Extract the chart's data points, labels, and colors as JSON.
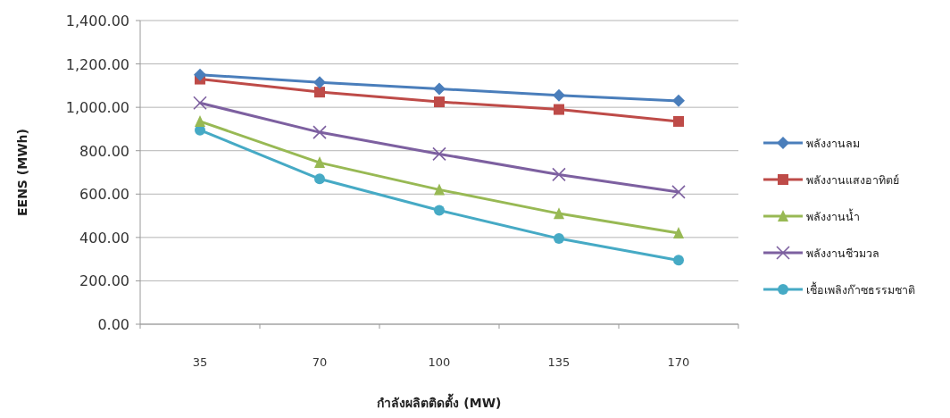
{
  "chart_data": {
    "type": "line",
    "xlabel": "กำลังผลิตติดตั้ง (MW)",
    "ylabel": "EENS (MWh)",
    "categories": [
      "35",
      "70",
      "100",
      "135",
      "170"
    ],
    "series": [
      {
        "name": "พลังงานลม",
        "color": "#4a7ebb",
        "marker": "diamond",
        "values": [
          1150,
          1115,
          1085,
          1055,
          1030
        ]
      },
      {
        "name": "พลังงานแสงอาทิตย์",
        "color": "#be4b48",
        "marker": "square",
        "values": [
          1130,
          1070,
          1025,
          990,
          935
        ]
      },
      {
        "name": "พลังงานน้ำ",
        "color": "#98b954",
        "marker": "triangle",
        "values": [
          935,
          745,
          620,
          510,
          420
        ]
      },
      {
        "name": "พลังงานชีวมวล",
        "color": "#7d60a0",
        "marker": "cross",
        "values": [
          1020,
          885,
          785,
          690,
          610
        ]
      },
      {
        "name": "เชื้อเพลิงก๊าซธรรมชาติ",
        "color": "#46aac5",
        "marker": "circle",
        "values": [
          895,
          670,
          525,
          395,
          295
        ]
      }
    ],
    "ylim": [
      0,
      1400
    ],
    "yticks": [
      {
        "value": 0,
        "label": "0.00"
      },
      {
        "value": 200,
        "label": "200.00"
      },
      {
        "value": 400,
        "label": "400.00"
      },
      {
        "value": 600,
        "label": "600.00"
      },
      {
        "value": 800,
        "label": "800.00"
      },
      {
        "value": 1000,
        "label": "1,000.00"
      },
      {
        "value": 1200,
        "label": "1,200.00"
      },
      {
        "value": 1400,
        "label": "1,400.00"
      }
    ],
    "grid": "y",
    "legend": "right",
    "line_style": "solid"
  }
}
